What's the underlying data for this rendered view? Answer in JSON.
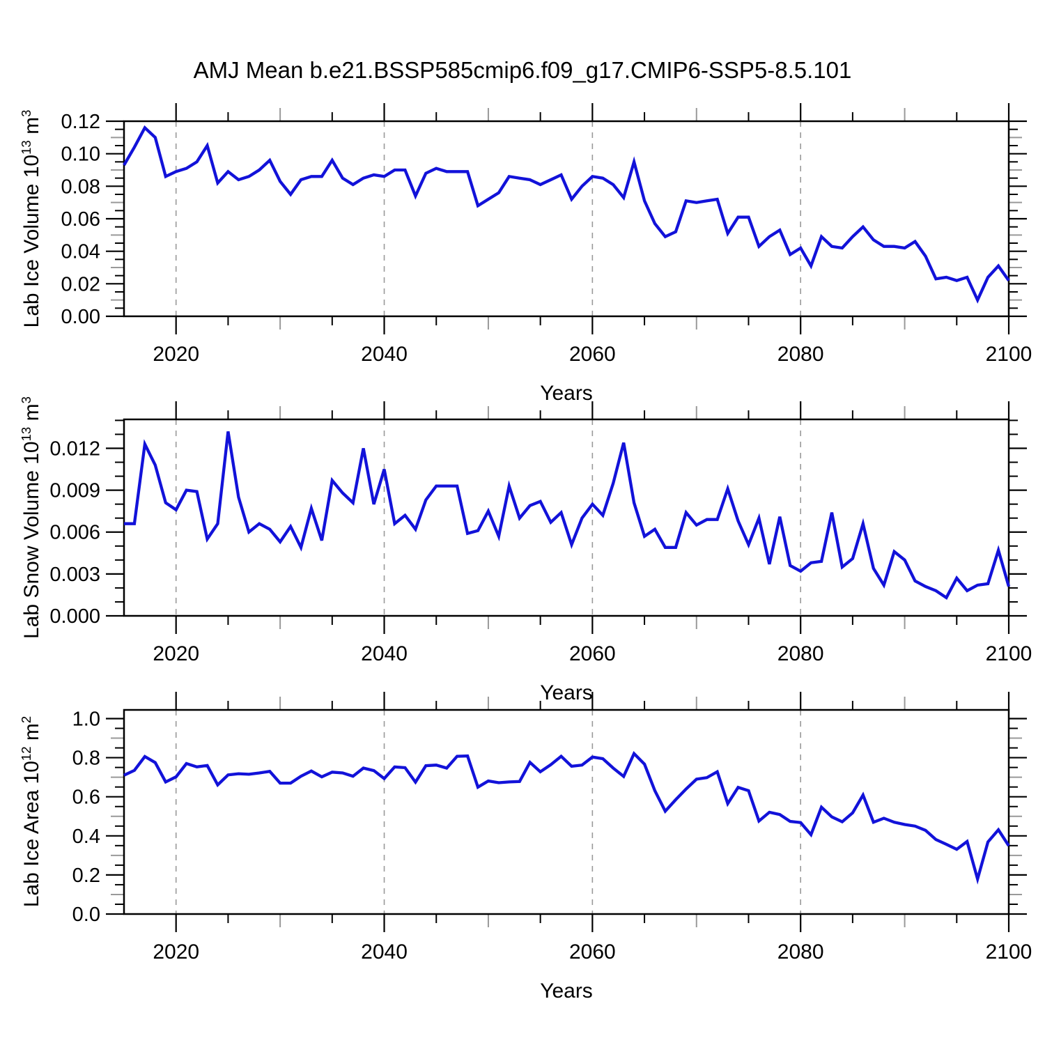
{
  "title": "AMJ Mean b.e21.BSSP585cmip6.f09_g17.CMIP6-SSP5-8.5.101",
  "colors": {
    "line": "#1212d9",
    "grid": "#999999",
    "axis": "#000000",
    "mid_tick": "#999999"
  },
  "chart_data": {
    "type": "line",
    "title": "AMJ Mean b.e21.BSSP585cmip6.f09_g17.CMIP6-SSP5-8.5.101",
    "legend": "none",
    "grid": "vertical dashed lines at major x ticks",
    "years": [
      2015,
      2016,
      2017,
      2018,
      2019,
      2020,
      2021,
      2022,
      2023,
      2024,
      2025,
      2026,
      2027,
      2028,
      2029,
      2030,
      2031,
      2032,
      2033,
      2034,
      2035,
      2036,
      2037,
      2038,
      2039,
      2040,
      2041,
      2042,
      2043,
      2044,
      2045,
      2046,
      2047,
      2048,
      2049,
      2050,
      2051,
      2052,
      2053,
      2054,
      2055,
      2056,
      2057,
      2058,
      2059,
      2060,
      2061,
      2062,
      2063,
      2064,
      2065,
      2066,
      2067,
      2068,
      2069,
      2070,
      2071,
      2072,
      2073,
      2074,
      2075,
      2076,
      2077,
      2078,
      2079,
      2080,
      2081,
      2082,
      2083,
      2084,
      2085,
      2086,
      2087,
      2088,
      2089,
      2090,
      2091,
      2092,
      2093,
      2094,
      2095,
      2096,
      2097,
      2098,
      2099,
      2100
    ],
    "xlim": [
      2015,
      2100
    ],
    "xticks": [
      2020,
      2040,
      2060,
      2080,
      2100
    ],
    "xtick_labels": [
      "2020",
      "2040",
      "2060",
      "2080",
      "2100"
    ],
    "grid_years": [
      2020,
      2040,
      2060,
      2080
    ],
    "panels": [
      {
        "name": "lab-ice-volume",
        "ylabel_parts": {
          "text": "Lab Ice Volume 10",
          "exp": "13",
          "unit": " m",
          "unit_exp": "3"
        },
        "xlabel": "Years",
        "ylim": [
          0,
          0.12
        ],
        "yticks": [
          0.0,
          0.02,
          0.04,
          0.06,
          0.08,
          0.1,
          0.12
        ],
        "ytick_labels": [
          "0.00",
          "0.02",
          "0.04",
          "0.06",
          "0.08",
          "0.10",
          "0.12"
        ],
        "minor_step": 0.005,
        "mid_step": 0.01,
        "values": [
          0.093,
          0.104,
          0.116,
          0.11,
          0.086,
          0.089,
          0.091,
          0.095,
          0.105,
          0.082,
          0.089,
          0.084,
          0.086,
          0.09,
          0.096,
          0.083,
          0.075,
          0.084,
          0.086,
          0.086,
          0.096,
          0.085,
          0.081,
          0.085,
          0.087,
          0.086,
          0.09,
          0.09,
          0.074,
          0.088,
          0.091,
          0.089,
          0.089,
          0.089,
          0.068,
          0.072,
          0.076,
          0.086,
          0.085,
          0.084,
          0.081,
          0.084,
          0.087,
          0.072,
          0.08,
          0.086,
          0.085,
          0.081,
          0.073,
          0.095,
          0.071,
          0.057,
          0.049,
          0.052,
          0.071,
          0.07,
          0.071,
          0.072,
          0.051,
          0.061,
          0.061,
          0.043,
          0.049,
          0.053,
          0.038,
          0.042,
          0.031,
          0.049,
          0.043,
          0.042,
          0.049,
          0.055,
          0.047,
          0.043,
          0.043,
          0.042,
          0.046,
          0.037,
          0.023,
          0.024,
          0.022,
          0.024,
          0.01,
          0.024,
          0.031,
          0.022
        ]
      },
      {
        "name": "lab-snow-volume",
        "ylabel_parts": {
          "text": "Lab Snow Volume 10",
          "exp": "13",
          "unit": " m",
          "unit_exp": "3"
        },
        "xlabel": "Years",
        "ylim": [
          0,
          0.01407
        ],
        "yticks": [
          0.0,
          0.003,
          0.006,
          0.009,
          0.012
        ],
        "ytick_labels": [
          "0.000",
          "0.003",
          "0.006",
          "0.009",
          "0.012"
        ],
        "minor_step": 0.001,
        "mid_step": null,
        "values": [
          0.0066,
          0.0066,
          0.0123,
          0.0108,
          0.0081,
          0.0076,
          0.009,
          0.0089,
          0.0055,
          0.0066,
          0.0132,
          0.0085,
          0.006,
          0.0066,
          0.0062,
          0.0053,
          0.0064,
          0.0049,
          0.0077,
          0.0054,
          0.0097,
          0.0088,
          0.0081,
          0.012,
          0.008,
          0.0105,
          0.0066,
          0.0072,
          0.0062,
          0.0083,
          0.0093,
          0.0093,
          0.0093,
          0.0059,
          0.0061,
          0.0075,
          0.0057,
          0.0093,
          0.007,
          0.0079,
          0.0082,
          0.0067,
          0.0074,
          0.0051,
          0.007,
          0.008,
          0.0072,
          0.0095,
          0.0124,
          0.0081,
          0.0057,
          0.0062,
          0.0049,
          0.0049,
          0.0074,
          0.0065,
          0.0069,
          0.0069,
          0.0091,
          0.0068,
          0.0051,
          0.007,
          0.0037,
          0.0071,
          0.0036,
          0.0032,
          0.0038,
          0.0039,
          0.0074,
          0.0035,
          0.0041,
          0.0066,
          0.0034,
          0.0022,
          0.0046,
          0.004,
          0.0025,
          0.0021,
          0.0018,
          0.0013,
          0.0027,
          0.0018,
          0.0022,
          0.0023,
          0.0047,
          0.0021
        ]
      },
      {
        "name": "lab-ice-area",
        "ylabel_parts": {
          "text": "Lab Ice Area 10",
          "exp": "12",
          "unit": " m",
          "unit_exp": "2"
        },
        "xlabel": "Years",
        "ylim": [
          0,
          1.0445
        ],
        "yticks": [
          0.0,
          0.2,
          0.4,
          0.6,
          0.8,
          1.0
        ],
        "ytick_labels": [
          "0.0",
          "0.2",
          "0.4",
          "0.6",
          "0.8",
          "1.0"
        ],
        "minor_step": 0.05,
        "mid_step": 0.1,
        "values": [
          0.71,
          0.735,
          0.806,
          0.775,
          0.676,
          0.702,
          0.77,
          0.753,
          0.76,
          0.661,
          0.712,
          0.718,
          0.715,
          0.722,
          0.73,
          0.67,
          0.67,
          0.705,
          0.732,
          0.702,
          0.726,
          0.722,
          0.705,
          0.747,
          0.734,
          0.693,
          0.753,
          0.749,
          0.675,
          0.759,
          0.762,
          0.747,
          0.807,
          0.809,
          0.649,
          0.681,
          0.672,
          0.676,
          0.678,
          0.776,
          0.728,
          0.764,
          0.807,
          0.756,
          0.762,
          0.803,
          0.795,
          0.747,
          0.704,
          0.821,
          0.767,
          0.631,
          0.526,
          0.585,
          0.64,
          0.69,
          0.698,
          0.728,
          0.565,
          0.648,
          0.631,
          0.476,
          0.521,
          0.509,
          0.474,
          0.468,
          0.406,
          0.547,
          0.497,
          0.472,
          0.518,
          0.609,
          0.47,
          0.49,
          0.47,
          0.458,
          0.45,
          0.428,
          0.381,
          0.357,
          0.331,
          0.371,
          0.179,
          0.369,
          0.431,
          0.349
        ]
      }
    ]
  }
}
